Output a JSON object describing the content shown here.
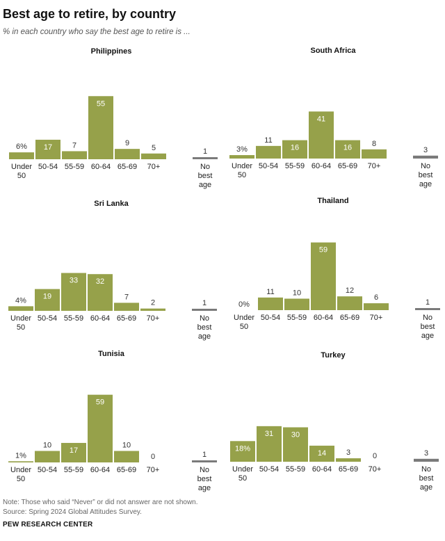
{
  "header": {
    "title": "Best age to retire, by country",
    "subtitle": "% in each country who say the best age to retire is ..."
  },
  "footer": {
    "note": "Note: Those who said “Never” or did not answer are not shown.",
    "source": "Source: Spring 2024 Global Attitudes Survey.",
    "org": "PEW RESEARCH CENTER"
  },
  "colors": {
    "bar": "#96a14a",
    "gray": "#7a7a7a",
    "label_inside": "#ffffff",
    "label_outside": "#333333"
  },
  "chart_data": [
    {
      "type": "bar",
      "title": "Philippines",
      "categories": [
        "Under 50",
        "50-54",
        "55-59",
        "60-64",
        "65-69",
        "70+",
        "No best age"
      ],
      "category_lines": [
        [
          "Under",
          "50"
        ],
        [
          "50-54"
        ],
        [
          "55-59"
        ],
        [
          "60-64"
        ],
        [
          "65-69"
        ],
        [
          "70+"
        ],
        [
          "No",
          "best",
          "age"
        ]
      ],
      "values": [
        6,
        17,
        7,
        55,
        9,
        5,
        1
      ],
      "labels": [
        "6%",
        "17",
        "7",
        "55",
        "9",
        "5",
        "1"
      ]
    },
    {
      "type": "bar",
      "title": "South Africa",
      "categories": [
        "Under 50",
        "50-54",
        "55-59",
        "60-64",
        "65-69",
        "70+",
        "No best age"
      ],
      "category_lines": [
        [
          "Under",
          "50"
        ],
        [
          "50-54"
        ],
        [
          "55-59"
        ],
        [
          "60-64"
        ],
        [
          "65-69"
        ],
        [
          "70+"
        ],
        [
          "No",
          "best",
          "age"
        ]
      ],
      "values": [
        3,
        11,
        16,
        41,
        16,
        8,
        3
      ],
      "labels": [
        "3%",
        "11",
        "16",
        "41",
        "16",
        "8",
        "3"
      ]
    },
    {
      "type": "bar",
      "title": "Sri Lanka",
      "categories": [
        "Under 50",
        "50-54",
        "55-59",
        "60-64",
        "65-69",
        "70+",
        "No best age"
      ],
      "category_lines": [
        [
          "Under",
          "50"
        ],
        [
          "50-54"
        ],
        [
          "55-59"
        ],
        [
          "60-64"
        ],
        [
          "65-69"
        ],
        [
          "70+"
        ],
        [
          "No",
          "best",
          "age"
        ]
      ],
      "values": [
        4,
        19,
        33,
        32,
        7,
        2,
        1
      ],
      "labels": [
        "4%",
        "19",
        "33",
        "32",
        "7",
        "2",
        "1"
      ]
    },
    {
      "type": "bar",
      "title": "Thailand",
      "categories": [
        "Under 50",
        "50-54",
        "55-59",
        "60-64",
        "65-69",
        "70+",
        "No best age"
      ],
      "category_lines": [
        [
          "Under",
          "50"
        ],
        [
          "50-54"
        ],
        [
          "55-59"
        ],
        [
          "60-64"
        ],
        [
          "65-69"
        ],
        [
          "70+"
        ],
        [
          "No",
          "best",
          "age"
        ]
      ],
      "values": [
        0,
        11,
        10,
        59,
        12,
        6,
        1
      ],
      "labels": [
        "0%",
        "11",
        "10",
        "59",
        "12",
        "6",
        "1"
      ]
    },
    {
      "type": "bar",
      "title": "Tunisia",
      "categories": [
        "Under 50",
        "50-54",
        "55-59",
        "60-64",
        "65-69",
        "70+",
        "No best age"
      ],
      "category_lines": [
        [
          "Under",
          "50"
        ],
        [
          "50-54"
        ],
        [
          "55-59"
        ],
        [
          "60-64"
        ],
        [
          "65-69"
        ],
        [
          "70+"
        ],
        [
          "No",
          "best",
          "age"
        ]
      ],
      "values": [
        1,
        10,
        17,
        59,
        10,
        0,
        1
      ],
      "labels": [
        "1%",
        "10",
        "17",
        "59",
        "10",
        "0",
        "1"
      ]
    },
    {
      "type": "bar",
      "title": "Turkey",
      "categories": [
        "Under 50",
        "50-54",
        "55-59",
        "60-64",
        "65-69",
        "70+",
        "No best age"
      ],
      "category_lines": [
        [
          "Under",
          "50"
        ],
        [
          "50-54"
        ],
        [
          "55-59"
        ],
        [
          "60-64"
        ],
        [
          "65-69"
        ],
        [
          "70+"
        ],
        [
          "No",
          "best",
          "age"
        ]
      ],
      "values": [
        18,
        31,
        30,
        14,
        3,
        0,
        3
      ],
      "labels": [
        "18%",
        "31",
        "30",
        "14",
        "3",
        "0",
        "3"
      ]
    }
  ]
}
